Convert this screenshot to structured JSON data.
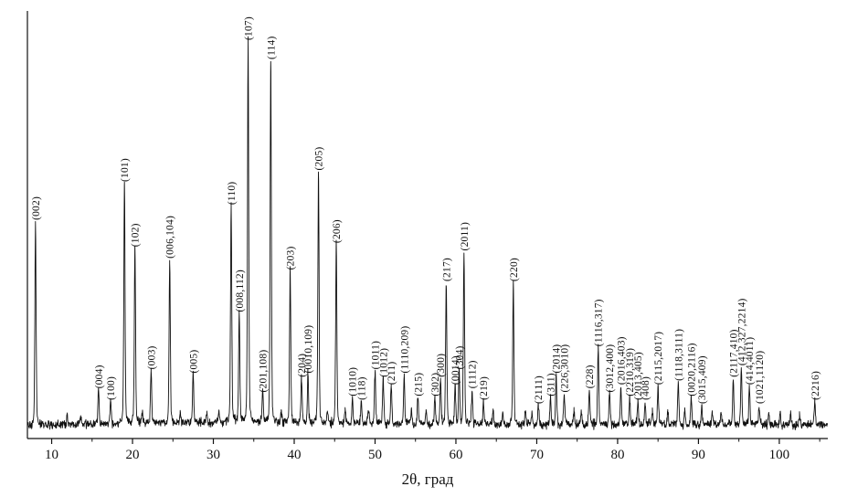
{
  "chart_data": {
    "type": "line",
    "subtype": "xrd-powder-diffraction-pattern",
    "title": "",
    "xlabel": "2θ, град",
    "ylabel": "",
    "xlim": [
      7,
      106
    ],
    "ylim": [
      0,
      105
    ],
    "x_ticks": [
      10,
      20,
      30,
      40,
      50,
      60,
      70,
      80,
      90,
      100
    ],
    "x_minor_tick_step": 5,
    "grid": false,
    "legend": "none",
    "line_color": "#111111",
    "background": "#ffffff",
    "intensity_units": "relative, % of strongest peak (107)",
    "noise": {
      "seed": 42,
      "baseline": 0.8,
      "amplitude": 1.1
    },
    "peaks": [
      {
        "two_theta": 8.0,
        "intensity": 53,
        "hkl": "(002)"
      },
      {
        "two_theta": 15.8,
        "intensity": 9,
        "hkl": "(004)"
      },
      {
        "two_theta": 17.3,
        "intensity": 6,
        "hkl": "(100)"
      },
      {
        "two_theta": 19.0,
        "intensity": 63,
        "hkl": "(101)"
      },
      {
        "two_theta": 20.3,
        "intensity": 46,
        "hkl": "(102)"
      },
      {
        "two_theta": 22.3,
        "intensity": 14,
        "hkl": "(003)"
      },
      {
        "two_theta": 24.6,
        "intensity": 43,
        "hkl": "(006,104)"
      },
      {
        "two_theta": 27.5,
        "intensity": 13,
        "hkl": "(005)"
      },
      {
        "two_theta": 32.2,
        "intensity": 57,
        "hkl": "(110)"
      },
      {
        "two_theta": 33.2,
        "intensity": 29,
        "hkl": "(008,112)"
      },
      {
        "two_theta": 34.3,
        "intensity": 100,
        "hkl": "(107)"
      },
      {
        "two_theta": 36.1,
        "intensity": 8,
        "hkl": "(201,108)"
      },
      {
        "two_theta": 37.1,
        "intensity": 95,
        "hkl": "(114)"
      },
      {
        "two_theta": 39.5,
        "intensity": 40,
        "hkl": "(203)"
      },
      {
        "two_theta": 40.9,
        "intensity": 12,
        "hkl": "(204)"
      },
      {
        "two_theta": 41.7,
        "intensity": 13,
        "hkl": "(0010,109)"
      },
      {
        "two_theta": 43.0,
        "intensity": 66,
        "hkl": "(205)"
      },
      {
        "two_theta": 45.2,
        "intensity": 47,
        "hkl": "(206)"
      },
      {
        "two_theta": 47.2,
        "intensity": 7,
        "hkl": "(1010)"
      },
      {
        "two_theta": 48.3,
        "intensity": 6,
        "hkl": "(118)"
      },
      {
        "two_theta": 50.0,
        "intensity": 14,
        "hkl": "(1011)"
      },
      {
        "two_theta": 51.0,
        "intensity": 12,
        "hkl": "(1012)"
      },
      {
        "two_theta": 52.0,
        "intensity": 10,
        "hkl": "(211)"
      },
      {
        "two_theta": 53.6,
        "intensity": 13,
        "hkl": "(1110,209)"
      },
      {
        "two_theta": 55.3,
        "intensity": 7,
        "hkl": "(215)"
      },
      {
        "two_theta": 57.4,
        "intensity": 7,
        "hkl": "(302)"
      },
      {
        "two_theta": 58.1,
        "intensity": 12,
        "hkl": "(300)"
      },
      {
        "two_theta": 58.8,
        "intensity": 37,
        "hkl": "(217)"
      },
      {
        "two_theta": 59.9,
        "intensity": 10,
        "hkl": "(0014)"
      },
      {
        "two_theta": 60.4,
        "intensity": 14,
        "hkl": "(304)"
      },
      {
        "two_theta": 61.0,
        "intensity": 45,
        "hkl": "(2011)"
      },
      {
        "two_theta": 62.0,
        "intensity": 9,
        "hkl": "(1112)"
      },
      {
        "two_theta": 63.4,
        "intensity": 6,
        "hkl": "(219)"
      },
      {
        "two_theta": 67.1,
        "intensity": 37,
        "hkl": "(220)"
      },
      {
        "two_theta": 70.2,
        "intensity": 5,
        "hkl": "(2111)"
      },
      {
        "two_theta": 71.7,
        "intensity": 7,
        "hkl": "(311)"
      },
      {
        "two_theta": 72.4,
        "intensity": 13,
        "hkl": "(2014)"
      },
      {
        "two_theta": 73.4,
        "intensity": 8,
        "hkl": "(226,3010)"
      },
      {
        "two_theta": 76.5,
        "intensity": 9,
        "hkl": "(228)"
      },
      {
        "two_theta": 77.6,
        "intensity": 20,
        "hkl": "(1116,317)"
      },
      {
        "two_theta": 79.0,
        "intensity": 8,
        "hkl": "(3012,400)"
      },
      {
        "two_theta": 80.4,
        "intensity": 10,
        "hkl": "(2016,403)"
      },
      {
        "two_theta": 81.5,
        "intensity": 7,
        "hkl": "(2210,319)"
      },
      {
        "two_theta": 82.5,
        "intensity": 6,
        "hkl": "(2013,405)"
      },
      {
        "two_theta": 83.4,
        "intensity": 6,
        "hkl": "(408)"
      },
      {
        "two_theta": 85.0,
        "intensity": 10,
        "hkl": "(2115,2017)"
      },
      {
        "two_theta": 87.5,
        "intensity": 11,
        "hkl": "(1118,3111)"
      },
      {
        "two_theta": 89.1,
        "intensity": 7,
        "hkl": "(0020,2116)"
      },
      {
        "two_theta": 90.4,
        "intensity": 5,
        "hkl": "(3015,409)"
      },
      {
        "two_theta": 94.3,
        "intensity": 12,
        "hkl": "(2117,410)"
      },
      {
        "two_theta": 95.3,
        "intensity": 15,
        "hkl": "(412,327,2214)"
      },
      {
        "two_theta": 96.3,
        "intensity": 10,
        "hkl": "(414,4011)"
      },
      {
        "two_theta": 97.5,
        "intensity": 5,
        "hkl": "(1021,1120)"
      },
      {
        "two_theta": 104.4,
        "intensity": 6,
        "hkl": "(2216)"
      }
    ],
    "unlabeled_minor_peaks": [
      {
        "two_theta": 11.9,
        "intensity": 2.5
      },
      {
        "two_theta": 13.6,
        "intensity": 2
      },
      {
        "two_theta": 21.2,
        "intensity": 3
      },
      {
        "two_theta": 25.9,
        "intensity": 2.5
      },
      {
        "two_theta": 29.2,
        "intensity": 2.5
      },
      {
        "two_theta": 30.7,
        "intensity": 3
      },
      {
        "two_theta": 38.4,
        "intensity": 3.5
      },
      {
        "two_theta": 44.1,
        "intensity": 3.5
      },
      {
        "two_theta": 46.3,
        "intensity": 3.5
      },
      {
        "two_theta": 49.2,
        "intensity": 3.5
      },
      {
        "two_theta": 54.5,
        "intensity": 3.5
      },
      {
        "two_theta": 56.3,
        "intensity": 3.5
      },
      {
        "two_theta": 64.6,
        "intensity": 3.5
      },
      {
        "two_theta": 65.8,
        "intensity": 3
      },
      {
        "two_theta": 68.6,
        "intensity": 3.5
      },
      {
        "two_theta": 69.4,
        "intensity": 3
      },
      {
        "two_theta": 74.6,
        "intensity": 3.5
      },
      {
        "two_theta": 75.5,
        "intensity": 3.5
      },
      {
        "two_theta": 84.3,
        "intensity": 3.5
      },
      {
        "two_theta": 86.2,
        "intensity": 3.5
      },
      {
        "two_theta": 88.3,
        "intensity": 3.5
      },
      {
        "two_theta": 91.7,
        "intensity": 3
      },
      {
        "two_theta": 92.8,
        "intensity": 3
      },
      {
        "two_theta": 98.7,
        "intensity": 3
      },
      {
        "two_theta": 100.1,
        "intensity": 2.5
      },
      {
        "two_theta": 101.4,
        "intensity": 2.5
      },
      {
        "two_theta": 102.5,
        "intensity": 2.5
      }
    ]
  }
}
